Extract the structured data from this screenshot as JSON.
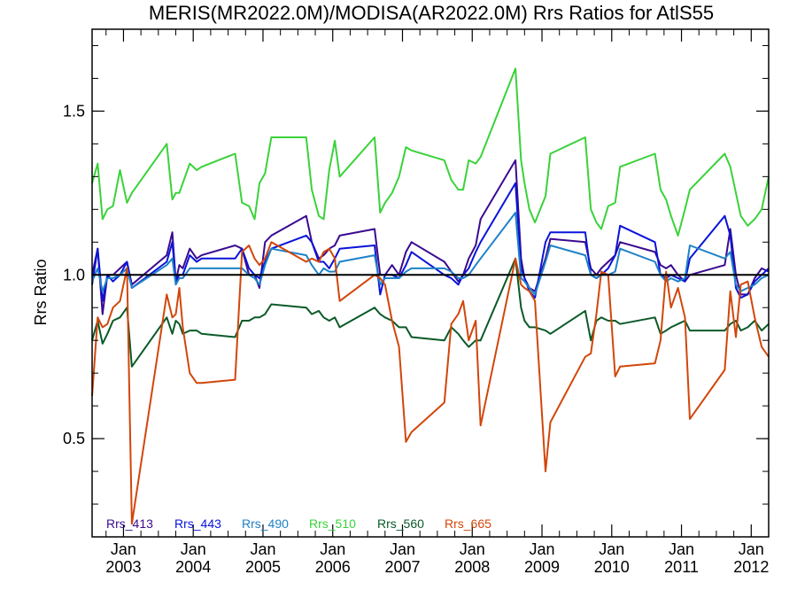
{
  "chart_data": {
    "type": "line",
    "title": "MERIS(MR2022.0M)/MODISA(AR2022.0M)  Rrs Ratios for AtlS55",
    "xlabel": "",
    "ylabel": "Rrs Ratio",
    "xlim": [
      2002.55,
      2012.25
    ],
    "ylim": [
      0.2,
      1.75
    ],
    "yticks": [
      0.5,
      1.0,
      1.5
    ],
    "ytick_labels": [
      "0.5",
      "1.0",
      "1.5"
    ],
    "xticks": [
      {
        "x": 2003.0,
        "month": "Jan",
        "year": "2003"
      },
      {
        "x": 2004.0,
        "month": "Jan",
        "year": "2004"
      },
      {
        "x": 2005.0,
        "month": "Jan",
        "year": "2005"
      },
      {
        "x": 2006.0,
        "month": "Jan",
        "year": "2006"
      },
      {
        "x": 2007.0,
        "month": "Jan",
        "year": "2007"
      },
      {
        "x": 2008.0,
        "month": "Jan",
        "year": "2008"
      },
      {
        "x": 2009.0,
        "month": "Jan",
        "year": "2009"
      },
      {
        "x": 2010.0,
        "month": "Jan",
        "year": "2010"
      },
      {
        "x": 2011.0,
        "month": "Jan",
        "year": "2011"
      },
      {
        "x": 2012.0,
        "month": "Jan",
        "year": "2012"
      }
    ],
    "reference_line": 1.0,
    "legend_position": "bottom-left",
    "series": [
      {
        "name": "Rrs_413",
        "color": "#3a0a90",
        "x": [
          2002.55,
          2002.63,
          2002.7,
          2002.77,
          2002.85,
          2002.95,
          2003.05,
          2003.12,
          2003.62,
          2003.7,
          2003.75,
          2003.8,
          2003.85,
          2003.95,
          2004.05,
          2004.12,
          2004.6,
          2004.7,
          2004.8,
          2004.88,
          2004.95,
          2005.03,
          2005.12,
          2005.62,
          2005.7,
          2005.8,
          2005.87,
          2005.95,
          2006.03,
          2006.1,
          2006.6,
          2006.68,
          2006.75,
          2006.85,
          2006.95,
          2007.05,
          2007.13,
          2007.6,
          2007.7,
          2007.8,
          2007.87,
          2007.95,
          2008.05,
          2008.12,
          2008.62,
          2008.7,
          2008.75,
          2008.82,
          2008.9,
          2009.05,
          2009.12,
          2009.62,
          2009.7,
          2009.78,
          2009.85,
          2009.95,
          2010.05,
          2010.12,
          2010.62,
          2010.7,
          2010.78,
          2010.85,
          2010.95,
          2011.05,
          2011.12,
          2011.62,
          2011.7,
          2011.78,
          2011.85,
          2011.95,
          2012.05,
          2012.15,
          2012.25
        ],
        "values": [
          1.0,
          1.08,
          0.88,
          1.0,
          1.0,
          1.02,
          1.04,
          0.97,
          1.06,
          1.13,
          0.98,
          1.03,
          1.02,
          1.08,
          1.05,
          1.06,
          1.09,
          1.08,
          1.0,
          1.0,
          0.96,
          1.1,
          1.12,
          1.18,
          1.1,
          1.05,
          1.06,
          1.08,
          1.09,
          1.12,
          1.14,
          1.0,
          1.0,
          1.03,
          1.0,
          1.07,
          1.1,
          1.04,
          1.01,
          0.98,
          1.0,
          1.05,
          1.09,
          1.17,
          1.35,
          1.05,
          0.99,
          0.96,
          0.95,
          1.05,
          1.11,
          1.1,
          1.02,
          1.0,
          1.02,
          1.04,
          1.06,
          1.1,
          1.07,
          1.03,
          1.02,
          1.03,
          1.0,
          0.98,
          1.0,
          1.03,
          1.14,
          1.0,
          0.94,
          0.94,
          0.99,
          1.02,
          1.01
        ]
      },
      {
        "name": "Rrs_443",
        "color": "#0a14d8",
        "x": [
          2002.55,
          2002.63,
          2002.7,
          2002.77,
          2002.85,
          2002.95,
          2003.05,
          2003.12,
          2003.62,
          2003.7,
          2003.75,
          2003.8,
          2003.85,
          2003.95,
          2004.05,
          2004.12,
          2004.6,
          2004.7,
          2004.8,
          2004.88,
          2004.95,
          2005.03,
          2005.12,
          2005.62,
          2005.7,
          2005.8,
          2005.87,
          2005.95,
          2006.03,
          2006.1,
          2006.6,
          2006.68,
          2006.75,
          2006.85,
          2006.95,
          2007.05,
          2007.13,
          2007.6,
          2007.7,
          2007.8,
          2007.87,
          2007.95,
          2008.05,
          2008.12,
          2008.62,
          2008.7,
          2008.75,
          2008.82,
          2008.9,
          2009.05,
          2009.12,
          2009.62,
          2009.7,
          2009.78,
          2009.85,
          2009.95,
          2010.05,
          2010.12,
          2010.62,
          2010.7,
          2010.78,
          2010.85,
          2010.95,
          2011.05,
          2011.12,
          2011.62,
          2011.7,
          2011.78,
          2011.85,
          2011.95,
          2012.05,
          2012.15,
          2012.25
        ],
        "values": [
          0.97,
          1.08,
          0.92,
          1.0,
          0.98,
          1.0,
          1.04,
          0.96,
          1.04,
          1.1,
          0.98,
          1.0,
          1.0,
          1.06,
          1.04,
          1.05,
          1.05,
          1.08,
          1.02,
          1.0,
          0.99,
          1.04,
          1.08,
          1.12,
          1.1,
          1.04,
          1.04,
          1.02,
          1.05,
          1.08,
          1.09,
          0.94,
          1.0,
          1.0,
          0.99,
          1.03,
          1.07,
          1.0,
          0.99,
          0.97,
          1.0,
          1.02,
          1.07,
          1.1,
          1.28,
          1.02,
          0.99,
          0.95,
          0.93,
          1.1,
          1.13,
          1.13,
          1.0,
          0.99,
          1.0,
          1.02,
          1.06,
          1.15,
          1.1,
          1.0,
          0.99,
          1.0,
          0.99,
          0.98,
          1.05,
          1.18,
          1.12,
          0.96,
          0.93,
          0.94,
          0.98,
          1.0,
          1.02
        ]
      },
      {
        "name": "Rrs_490",
        "color": "#1e82c8",
        "x": [
          2002.55,
          2002.63,
          2002.7,
          2002.77,
          2002.85,
          2002.95,
          2003.05,
          2003.12,
          2003.62,
          2003.7,
          2003.75,
          2003.8,
          2003.85,
          2003.95,
          2004.05,
          2004.12,
          2004.6,
          2004.7,
          2004.8,
          2004.88,
          2004.95,
          2005.03,
          2005.12,
          2005.62,
          2005.7,
          2005.8,
          2005.87,
          2005.95,
          2006.03,
          2006.1,
          2006.6,
          2006.68,
          2006.75,
          2006.85,
          2006.95,
          2007.05,
          2007.13,
          2007.6,
          2007.7,
          2007.8,
          2007.87,
          2007.95,
          2008.05,
          2008.12,
          2008.62,
          2008.7,
          2008.75,
          2008.82,
          2008.9,
          2009.05,
          2009.12,
          2009.62,
          2009.7,
          2009.78,
          2009.85,
          2009.95,
          2010.05,
          2010.12,
          2010.62,
          2010.7,
          2010.78,
          2010.85,
          2010.95,
          2011.05,
          2011.12,
          2011.62,
          2011.7,
          2011.78,
          2011.85,
          2011.95,
          2012.05,
          2012.15,
          2012.25
        ],
        "values": [
          0.98,
          1.02,
          0.95,
          0.99,
          0.99,
          1.0,
          1.02,
          0.96,
          1.03,
          1.05,
          0.97,
          0.99,
          0.99,
          1.02,
          1.02,
          1.02,
          1.02,
          1.02,
          1.0,
          0.99,
          0.97,
          1.03,
          1.08,
          1.06,
          1.03,
          1.0,
          1.02,
          1.01,
          1.01,
          1.04,
          1.06,
          0.97,
          0.99,
          0.99,
          0.99,
          1.01,
          1.02,
          1.02,
          1.01,
          0.99,
          0.99,
          1.0,
          1.03,
          1.05,
          1.19,
          0.99,
          0.98,
          0.96,
          0.94,
          1.04,
          1.09,
          1.06,
          1.0,
          0.99,
          1.0,
          1.0,
          1.01,
          1.08,
          1.04,
          1.0,
          0.98,
          0.99,
          0.98,
          0.99,
          1.09,
          1.05,
          1.07,
          0.97,
          0.95,
          0.96,
          0.97,
          0.99,
          1.0
        ]
      },
      {
        "name": "Rrs_510",
        "color": "#3ad23a",
        "x": [
          2002.55,
          2002.63,
          2002.7,
          2002.77,
          2002.85,
          2002.95,
          2003.05,
          2003.12,
          2003.62,
          2003.7,
          2003.75,
          2003.8,
          2003.85,
          2003.95,
          2004.05,
          2004.12,
          2004.6,
          2004.7,
          2004.8,
          2004.88,
          2004.95,
          2005.03,
          2005.12,
          2005.62,
          2005.7,
          2005.8,
          2005.87,
          2005.95,
          2006.03,
          2006.1,
          2006.6,
          2006.68,
          2006.75,
          2006.85,
          2006.95,
          2007.05,
          2007.13,
          2007.6,
          2007.7,
          2007.8,
          2007.87,
          2007.95,
          2008.05,
          2008.12,
          2008.62,
          2008.7,
          2008.75,
          2008.82,
          2008.9,
          2009.05,
          2009.12,
          2009.62,
          2009.7,
          2009.78,
          2009.85,
          2009.95,
          2010.05,
          2010.12,
          2010.62,
          2010.7,
          2010.78,
          2010.85,
          2010.95,
          2011.05,
          2011.12,
          2011.62,
          2011.7,
          2011.78,
          2011.85,
          2011.95,
          2012.05,
          2012.15,
          2012.25
        ],
        "values": [
          1.28,
          1.34,
          1.17,
          1.2,
          1.21,
          1.32,
          1.22,
          1.25,
          1.4,
          1.23,
          1.25,
          1.25,
          1.28,
          1.34,
          1.32,
          1.33,
          1.37,
          1.22,
          1.21,
          1.17,
          1.28,
          1.31,
          1.42,
          1.42,
          1.26,
          1.18,
          1.17,
          1.32,
          1.41,
          1.3,
          1.42,
          1.19,
          1.22,
          1.25,
          1.3,
          1.39,
          1.38,
          1.35,
          1.29,
          1.26,
          1.26,
          1.35,
          1.34,
          1.36,
          1.63,
          1.35,
          1.28,
          1.2,
          1.16,
          1.24,
          1.37,
          1.42,
          1.2,
          1.16,
          1.14,
          1.21,
          1.22,
          1.33,
          1.37,
          1.26,
          1.23,
          1.18,
          1.12,
          1.2,
          1.26,
          1.37,
          1.33,
          1.25,
          1.18,
          1.15,
          1.17,
          1.2,
          1.3
        ]
      },
      {
        "name": "Rrs_560",
        "color": "#0a5a28",
        "x": [
          2002.55,
          2002.63,
          2002.7,
          2002.77,
          2002.85,
          2002.95,
          2003.05,
          2003.12,
          2003.62,
          2003.7,
          2003.75,
          2003.8,
          2003.85,
          2003.95,
          2004.05,
          2004.12,
          2004.6,
          2004.7,
          2004.8,
          2004.88,
          2004.95,
          2005.03,
          2005.12,
          2005.62,
          2005.7,
          2005.8,
          2005.87,
          2005.95,
          2006.03,
          2006.1,
          2006.6,
          2006.68,
          2006.75,
          2006.85,
          2006.95,
          2007.05,
          2007.13,
          2007.6,
          2007.7,
          2007.8,
          2007.87,
          2007.95,
          2008.05,
          2008.12,
          2008.62,
          2008.7,
          2008.75,
          2008.82,
          2008.9,
          2009.05,
          2009.12,
          2009.62,
          2009.7,
          2009.78,
          2009.85,
          2009.95,
          2010.05,
          2010.12,
          2010.62,
          2010.7,
          2010.78,
          2010.85,
          2010.95,
          2011.05,
          2011.12,
          2011.62,
          2011.7,
          2011.78,
          2011.85,
          2011.95,
          2012.05,
          2012.15,
          2012.25
        ],
        "values": [
          0.8,
          0.86,
          0.79,
          0.82,
          0.86,
          0.87,
          0.9,
          0.72,
          0.87,
          0.82,
          0.86,
          0.85,
          0.82,
          0.83,
          0.83,
          0.82,
          0.81,
          0.86,
          0.86,
          0.87,
          0.87,
          0.88,
          0.91,
          0.9,
          0.88,
          0.89,
          0.87,
          0.86,
          0.87,
          0.84,
          0.9,
          0.88,
          0.87,
          0.86,
          0.84,
          0.84,
          0.81,
          0.8,
          0.84,
          0.82,
          0.8,
          0.78,
          0.8,
          0.8,
          1.05,
          0.9,
          0.86,
          0.84,
          0.84,
          0.83,
          0.82,
          0.89,
          0.8,
          0.86,
          0.87,
          0.86,
          0.86,
          0.85,
          0.87,
          0.82,
          0.83,
          0.84,
          0.85,
          0.86,
          0.83,
          0.83,
          0.85,
          0.86,
          0.83,
          0.84,
          0.86,
          0.83,
          0.85
        ]
      },
      {
        "name": "Rrs_665",
        "color": "#d2460a",
        "x": [
          2002.55,
          2002.63,
          2002.7,
          2002.77,
          2002.85,
          2002.95,
          2003.05,
          2003.12,
          2003.62,
          2003.7,
          2003.75,
          2003.8,
          2003.85,
          2003.95,
          2004.05,
          2004.12,
          2004.6,
          2004.7,
          2004.8,
          2004.88,
          2004.95,
          2005.03,
          2005.12,
          2005.62,
          2005.7,
          2005.8,
          2005.87,
          2005.95,
          2006.03,
          2006.1,
          2006.6,
          2006.68,
          2006.75,
          2006.85,
          2006.95,
          2007.05,
          2007.13,
          2007.6,
          2007.7,
          2007.8,
          2007.87,
          2007.95,
          2008.05,
          2008.12,
          2008.62,
          2008.7,
          2008.75,
          2008.82,
          2008.9,
          2009.05,
          2009.12,
          2009.62,
          2009.7,
          2009.78,
          2009.85,
          2009.95,
          2010.05,
          2010.12,
          2010.62,
          2010.7,
          2010.78,
          2010.85,
          2010.95,
          2011.05,
          2011.12,
          2011.62,
          2011.7,
          2011.78,
          2011.85,
          2011.95,
          2012.05,
          2012.15,
          2012.25
        ],
        "values": [
          0.63,
          0.87,
          0.84,
          0.85,
          0.9,
          0.92,
          1.02,
          0.24,
          0.94,
          0.87,
          0.88,
          0.96,
          0.84,
          0.7,
          0.67,
          0.67,
          0.68,
          1.07,
          1.09,
          1.05,
          1.03,
          1.05,
          1.1,
          1.04,
          1.05,
          1.04,
          1.07,
          1.08,
          1.05,
          0.92,
          1.0,
          0.99,
          0.97,
          0.86,
          0.78,
          0.49,
          0.52,
          0.61,
          0.85,
          0.88,
          0.92,
          0.8,
          0.86,
          0.54,
          1.05,
          0.97,
          0.96,
          0.95,
          0.92,
          0.4,
          0.55,
          0.75,
          0.76,
          0.88,
          1.01,
          1.0,
          0.69,
          0.72,
          0.73,
          0.8,
          1.01,
          0.9,
          0.96,
          0.87,
          0.56,
          0.71,
          0.95,
          0.81,
          0.97,
          0.98,
          0.87,
          0.78,
          0.75
        ]
      }
    ]
  }
}
